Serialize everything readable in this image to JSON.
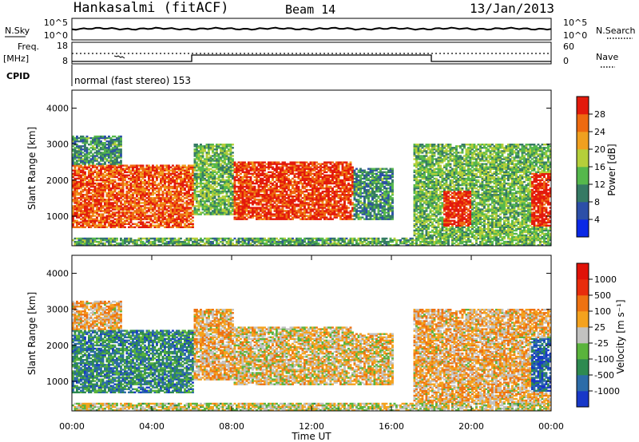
{
  "header": {
    "station": "Hankasalmi (fitACF)",
    "beam": "Beam 14",
    "date": "13/Jan/2013"
  },
  "top_panels": {
    "nsky_label": "N.Sky",
    "nsky_ticks": [
      "10^5",
      "10^0"
    ],
    "nsearch_label": "N.Search",
    "nsearch_ticks": [
      "10^5",
      "10^0"
    ],
    "freq_label": "Freq.",
    "freq_unit": "[MHz]",
    "freq_ticks": [
      "18",
      "8"
    ],
    "nave_label": "Nave",
    "nave_ticks": [
      "60",
      "0"
    ],
    "cpid_label": "CPID",
    "cpid_value": "normal (fast stereo) 153"
  },
  "chart_data": [
    {
      "type": "heatmap",
      "panel": "power",
      "ylabel": "Slant Range [km]",
      "xlabel": "",
      "x_range_hours": [
        0,
        24
      ],
      "ylim": [
        180,
        4500
      ],
      "yticks": [
        "1000",
        "2000",
        "3000",
        "4000"
      ],
      "colorbar_label": "Power [dB]",
      "colorbar_ticks": [
        "4",
        "8",
        "12",
        "16",
        "20",
        "24",
        "28"
      ],
      "colorbar_colors": [
        "#0a28e6",
        "#2c4fa8",
        "#357a64",
        "#55b84c",
        "#b5cf3a",
        "#f0a020",
        "#ee6a10",
        "#e31a0c"
      ],
      "echo_regions": [
        {
          "t0": 0.0,
          "t1": 6.0,
          "r0": 650,
          "r1": 2400,
          "level": 0.85
        },
        {
          "t0": 1.5,
          "t1": 5.0,
          "r0": 1700,
          "r1": 2300,
          "level": 0.55
        },
        {
          "t0": 0.0,
          "t1": 2.5,
          "r0": 2300,
          "r1": 3200,
          "level": 0.35
        },
        {
          "t0": 8.0,
          "t1": 14.0,
          "r0": 900,
          "r1": 2500,
          "level": 0.9
        },
        {
          "t0": 6.0,
          "t1": 8.0,
          "r0": 1000,
          "r1": 3000,
          "level": 0.45
        },
        {
          "t0": 14.0,
          "t1": 16.0,
          "r0": 900,
          "r1": 2300,
          "level": 0.35
        },
        {
          "t0": 17.0,
          "t1": 24.0,
          "r0": 200,
          "r1": 3000,
          "level": 0.45
        },
        {
          "t0": 18.5,
          "t1": 20.0,
          "r0": 700,
          "r1": 1700,
          "level": 0.95
        },
        {
          "t0": 23.0,
          "t1": 24.0,
          "r0": 700,
          "r1": 2200,
          "level": 0.95
        },
        {
          "t0": 0.0,
          "t1": 24.0,
          "r0": 180,
          "r1": 400,
          "level": 0.4
        }
      ]
    },
    {
      "type": "heatmap",
      "panel": "velocity",
      "ylabel": "Slant Range [km]",
      "xlabel": "Time UT",
      "x_range_hours": [
        0,
        24
      ],
      "xticks": [
        "00:00",
        "04:00",
        "08:00",
        "12:00",
        "16:00",
        "20:00",
        "00:00"
      ],
      "ylim": [
        180,
        4500
      ],
      "yticks": [
        "1000",
        "2000",
        "3000",
        "4000"
      ],
      "colorbar_label": "Velocity [m s⁻¹]",
      "colorbar_ticks": [
        "1000",
        "500",
        "100",
        "25",
        "-25",
        "-100",
        "-500",
        "-1000"
      ],
      "colorbar_colors": [
        "#1838c8",
        "#2c6ca8",
        "#2e8a50",
        "#5ab43c",
        "#c2c2c0",
        "#f4a21e",
        "#ee7212",
        "#e82c0c",
        "#e01208"
      ],
      "echo_regions": [
        {
          "t0": 0.0,
          "t1": 6.0,
          "r0": 650,
          "r1": 2400,
          "level": 0.75
        },
        {
          "t0": 1.5,
          "t1": 5.0,
          "r0": 1700,
          "r1": 2300,
          "level": 0.45
        },
        {
          "t0": 0.0,
          "t1": 2.5,
          "r0": 2300,
          "r1": 3200,
          "level": 0.4
        },
        {
          "t0": 8.0,
          "t1": 14.0,
          "r0": 900,
          "r1": 2500,
          "level": 0.45
        },
        {
          "t0": 6.0,
          "t1": 8.0,
          "r0": 1000,
          "r1": 3000,
          "level": 0.4
        },
        {
          "t0": 14.0,
          "t1": 16.0,
          "r0": 900,
          "r1": 2300,
          "level": 0.45
        },
        {
          "t0": 17.0,
          "t1": 24.0,
          "r0": 200,
          "r1": 3000,
          "level": 0.4
        },
        {
          "t0": 18.5,
          "t1": 20.0,
          "r0": 700,
          "r1": 1700,
          "level": 0.2
        },
        {
          "t0": 23.0,
          "t1": 24.0,
          "r0": 700,
          "r1": 2200,
          "level": 0.85
        },
        {
          "t0": 0.0,
          "t1": 24.0,
          "r0": 180,
          "r1": 400,
          "level": 0.5
        }
      ]
    }
  ]
}
